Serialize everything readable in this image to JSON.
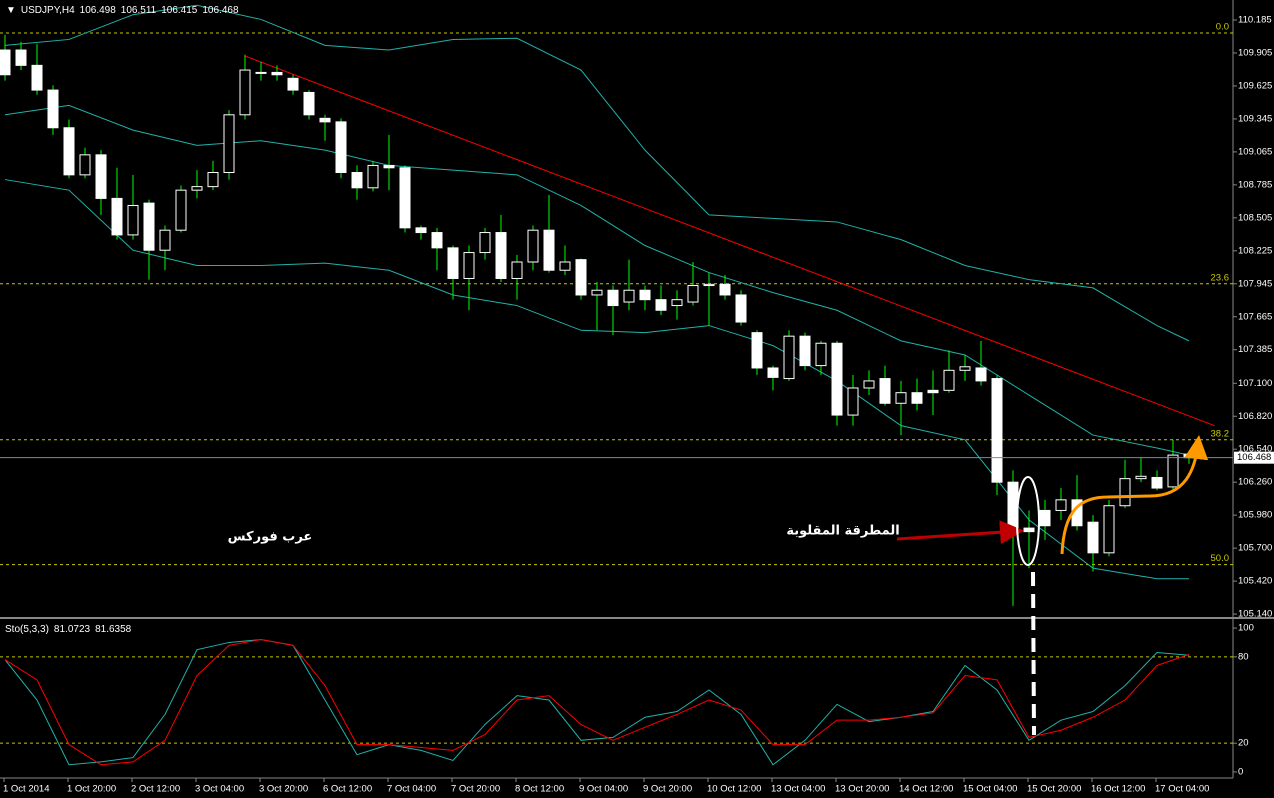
{
  "chart_data": [
    {
      "type": "candlestick",
      "symbol": "USDJPY,H4",
      "categories": [
        "1 Oct 2014",
        null,
        null,
        null,
        "1 Oct 20:00",
        null,
        null,
        null,
        "2 Oct 12:00",
        null,
        null,
        null,
        "3 Oct 04:00",
        null,
        null,
        null,
        "3 Oct 20:00",
        null,
        null,
        null,
        "6 Oct 12:00",
        null,
        null,
        null,
        "7 Oct 04:00",
        null,
        null,
        null,
        "7 Oct 20:00",
        null,
        null,
        null,
        "8 Oct 12:00",
        null,
        null,
        null,
        "9 Oct 04:00",
        null,
        null,
        null,
        "9 Oct 20:00",
        null,
        null,
        null,
        "10 Oct 12:00",
        null,
        null,
        null,
        "13 Oct 04:00",
        null,
        null,
        null,
        "13 Oct 20:00",
        null,
        null,
        null,
        "14 Oct 12:00",
        null,
        null,
        null,
        "15 Oct 04:00",
        null,
        null,
        null,
        "15 Oct 20:00",
        null,
        null,
        null,
        "16 Oct 12:00",
        null,
        null,
        null,
        "17 Oct 04:00",
        null,
        null
      ],
      "open": [
        109.93,
        109.93,
        109.8,
        109.59,
        109.27,
        108.87,
        109.04,
        108.67,
        108.36,
        108.63,
        108.23,
        108.4,
        108.74,
        108.77,
        108.89,
        109.38,
        109.74,
        109.74,
        109.69,
        109.57,
        109.35,
        109.32,
        108.89,
        108.76,
        108.95,
        108.93,
        108.42,
        108.38,
        108.25,
        107.99,
        108.21,
        108.38,
        107.99,
        108.13,
        108.4,
        108.06,
        108.15,
        107.85,
        107.89,
        107.79,
        107.89,
        107.81,
        107.76,
        107.79,
        107.93,
        107.94,
        107.85,
        107.53,
        107.23,
        107.14,
        107.5,
        107.25,
        107.44,
        106.83,
        107.06,
        107.14,
        106.93,
        107.02,
        107.04,
        107.04,
        107.21,
        107.23,
        107.14,
        106.26,
        105.87,
        106.02,
        106.02,
        106.11,
        105.92,
        105.66,
        106.06,
        106.29,
        106.3,
        106.22,
        106.498
      ],
      "high": [
        110.06,
        110.0,
        109.98,
        109.63,
        109.34,
        109.1,
        109.08,
        108.93,
        108.87,
        108.66,
        108.44,
        108.78,
        108.91,
        108.99,
        109.42,
        109.89,
        109.83,
        109.8,
        109.72,
        109.59,
        109.38,
        109.35,
        108.95,
        108.99,
        109.21,
        108.95,
        108.44,
        108.42,
        108.27,
        108.27,
        108.42,
        108.53,
        108.19,
        108.44,
        108.7,
        108.27,
        108.16,
        107.96,
        107.93,
        108.15,
        107.93,
        107.93,
        107.89,
        108.13,
        108.04,
        108.02,
        107.89,
        107.55,
        107.25,
        107.55,
        107.53,
        107.46,
        107.46,
        107.17,
        107.21,
        107.25,
        107.12,
        107.14,
        107.21,
        107.38,
        107.34,
        107.46,
        107.17,
        106.36,
        106.02,
        106.11,
        106.21,
        106.32,
        105.98,
        106.11,
        106.45,
        106.47,
        106.36,
        106.62,
        106.511
      ],
      "low": [
        109.67,
        109.76,
        109.55,
        109.21,
        108.84,
        108.84,
        108.53,
        108.32,
        108.32,
        107.98,
        108.06,
        108.38,
        108.67,
        108.74,
        108.83,
        109.34,
        109.67,
        109.67,
        109.55,
        109.34,
        109.16,
        108.84,
        108.66,
        108.73,
        108.74,
        108.38,
        108.32,
        108.06,
        107.81,
        107.72,
        108.15,
        107.96,
        107.81,
        108.06,
        108.04,
        108.02,
        107.81,
        107.55,
        107.51,
        107.72,
        107.72,
        107.68,
        107.64,
        107.76,
        107.59,
        107.81,
        107.59,
        107.17,
        107.04,
        107.12,
        107.21,
        107.17,
        106.74,
        106.74,
        107.0,
        106.91,
        106.66,
        106.87,
        106.83,
        107.02,
        107.12,
        107.08,
        106.15,
        105.21,
        105.53,
        105.77,
        105.94,
        105.85,
        105.5,
        105.63,
        106.04,
        106.26,
        106.19,
        106.19,
        106.415
      ],
      "close": [
        109.72,
        109.8,
        109.59,
        109.27,
        108.87,
        109.04,
        108.67,
        108.36,
        108.61,
        108.23,
        108.4,
        108.74,
        108.77,
        108.89,
        109.38,
        109.76,
        109.74,
        109.72,
        109.59,
        109.38,
        109.32,
        108.89,
        108.76,
        108.95,
        108.93,
        108.42,
        108.38,
        108.25,
        107.99,
        108.21,
        108.38,
        107.99,
        108.13,
        108.4,
        108.06,
        108.13,
        107.85,
        107.89,
        107.76,
        107.89,
        107.81,
        107.72,
        107.81,
        107.93,
        107.94,
        107.85,
        107.62,
        107.23,
        107.15,
        107.5,
        107.25,
        107.44,
        106.83,
        107.06,
        107.12,
        106.93,
        107.02,
        106.93,
        107.02,
        107.21,
        107.24,
        107.12,
        106.26,
        105.83,
        105.84,
        105.89,
        106.11,
        105.89,
        105.66,
        106.06,
        106.29,
        106.31,
        106.21,
        106.49,
        106.468
      ],
      "bull_color": "#000000",
      "bear_color": "#ffffff",
      "wick_color": "#00ff00",
      "ylim": [
        105.115,
        110.355
      ],
      "yticks": [
        110.185,
        109.905,
        109.625,
        109.345,
        109.065,
        108.785,
        108.505,
        108.225,
        107.945,
        107.665,
        107.385,
        {
          "value": 107.1,
          "label": "107.100"
        },
        {
          "value": 106.82,
          "label": "106.820"
        },
        {
          "value": 106.54,
          "label": "106.540"
        },
        {
          "value": 106.26,
          "label": "106.260"
        },
        {
          "value": 105.98,
          "label": "105.980"
        },
        {
          "value": 105.7,
          "label": "105.700"
        },
        {
          "value": 105.42,
          "label": "105.420"
        },
        {
          "value": 105.14,
          "label": "105.140"
        }
      ],
      "bands": {
        "x": [
          0,
          4,
          8,
          12,
          16,
          20,
          24,
          28,
          32,
          36,
          40,
          44,
          48,
          52,
          56,
          60,
          64,
          68,
          72,
          74
        ],
        "upper": [
          109.97,
          110.02,
          110.23,
          110.31,
          110.19,
          109.97,
          109.93,
          110.02,
          110.03,
          109.76,
          109.08,
          108.53,
          108.5,
          108.47,
          108.32,
          108.1,
          107.98,
          107.91,
          107.59,
          107.46
        ],
        "middle": [
          109.38,
          109.46,
          109.25,
          109.12,
          109.16,
          109.08,
          108.95,
          108.91,
          108.87,
          108.61,
          108.27,
          108.04,
          107.87,
          107.72,
          107.46,
          107.34,
          107.0,
          106.66,
          106.55,
          106.49
        ],
        "lower": [
          108.83,
          108.74,
          108.23,
          108.1,
          108.1,
          108.12,
          108.06,
          107.85,
          107.76,
          107.55,
          107.53,
          107.59,
          107.42,
          107.12,
          106.74,
          106.62,
          105.94,
          105.53,
          105.44,
          105.44
        ],
        "color": "#20b2aa"
      },
      "trendline": {
        "x": [
          15,
          75.6
        ],
        "y": [
          109.88,
          106.74
        ],
        "color": "#ff0000"
      },
      "fibonacci": [
        {
          "value": 110.075,
          "label": "0.0"
        },
        {
          "value": 107.945,
          "label": "23.6"
        },
        {
          "value": 106.62,
          "label": "38.2"
        },
        {
          "value": 105.56,
          "label": "50.0"
        }
      ],
      "fib_color": "#c8c800",
      "price_line_color": "#6f8fa8",
      "annotations": [
        "عرب فوركس",
        "المطرقة المقلوبة"
      ]
    },
    {
      "type": "line",
      "title": "Sto(5,3,3)",
      "x": [
        0,
        2,
        4,
        6,
        8,
        10,
        12,
        14,
        16,
        18,
        20,
        22,
        24,
        26,
        28,
        30,
        32,
        34,
        36,
        38,
        40,
        42,
        44,
        46,
        48,
        50,
        52,
        54,
        56,
        58,
        60,
        62,
        64,
        66,
        68,
        70,
        72,
        74
      ],
      "series": [
        {
          "color": "#20b2aa",
          "values": [
            78,
            50,
            5,
            7,
            10,
            40,
            85,
            90,
            92,
            88,
            50,
            12,
            19,
            15,
            8,
            33,
            53,
            50,
            22,
            24,
            38,
            42,
            57,
            40,
            5,
            22,
            47,
            35,
            38,
            42,
            74,
            57,
            22,
            36,
            42,
            60,
            83,
            81.0723
          ]
        },
        {
          "color": "#ff0000",
          "values": [
            78,
            64,
            19,
            5,
            7,
            22,
            67,
            88,
            92,
            88,
            60,
            19,
            19,
            17,
            15,
            26,
            50,
            53,
            33,
            22,
            31,
            40,
            50,
            43,
            19,
            19,
            36,
            36,
            38,
            41,
            67,
            64,
            24,
            29,
            38,
            50,
            74,
            81.6358
          ]
        }
      ],
      "ylim": [
        -4.2,
        105.6
      ],
      "yticks": [
        100,
        80,
        20,
        0
      ],
      "levels": [
        80,
        20
      ],
      "level_color": "#c8c800"
    }
  ]
}
